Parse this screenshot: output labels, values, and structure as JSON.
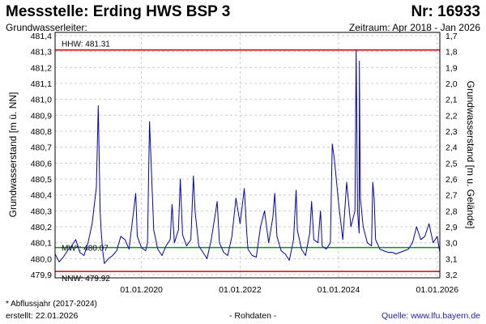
{
  "header": {
    "title": "Messstelle: Erding HWS BSP 3",
    "number": "Nr: 16933",
    "aquifer": "Grundwasserleiter:",
    "period": "Zeitraum: Apr 2018 - Jan 2026"
  },
  "footer": {
    "footnote": "* Abflussjahr (2017-2024)",
    "created": "erstellt:  22.01.2026",
    "raw_data": "- Rohdaten -",
    "source": "Quelle: www.lfu.bayern.de"
  },
  "colors": {
    "series": "#0000cc",
    "reference_extremes": "#dd0000",
    "reference_mean": "#009900",
    "grid": "#cccccc",
    "source_link": "#1a1acc"
  },
  "chart_data": {
    "type": "line",
    "ylabel": "Grundwasserstand [m ü. NN]",
    "y2label": "Grundwasserstand [m u. Gelände]",
    "ylim": [
      479.88,
      481.42
    ],
    "y_ticks": [
      "479,9",
      "480,0",
      "480,1",
      "480,2",
      "480,3",
      "480,4",
      "480,5",
      "480,6",
      "480,7",
      "480,8",
      "480,9",
      "481,0",
      "481,1",
      "481,2",
      "481,3",
      "481,4"
    ],
    "y2_ticks": [
      "3,2",
      "3,1",
      "3,0",
      "2,9",
      "2,8",
      "2,7",
      "2,6",
      "2,5",
      "2,4",
      "2,3",
      "2,2",
      "2,1",
      "2,0",
      "1,9",
      "1,8",
      "1,7"
    ],
    "y2_values": [
      3.2,
      3.1,
      3.0,
      2.9,
      2.8,
      2.7,
      2.6,
      2.5,
      2.4,
      2.3,
      2.2,
      2.1,
      2.0,
      1.9,
      1.8,
      1.7
    ],
    "y2_offset": 483.1,
    "xlim": [
      "2018-04-01",
      "2026-01-20"
    ],
    "x_ticks": [
      {
        "date": "2020-01-01",
        "label": "01.01.2020"
      },
      {
        "date": "2022-01-01",
        "label": "01.01.2022"
      },
      {
        "date": "2024-01-01",
        "label": "01.01.2024"
      },
      {
        "date": "2026-01-01",
        "label": "01.01.2026"
      }
    ],
    "grid": true,
    "reference_lines": [
      {
        "name": "HHW",
        "label": "HHW: 481.31",
        "value": 481.31,
        "kind": "extreme"
      },
      {
        "name": "MW",
        "label": "MW*: 480.07",
        "value": 480.07,
        "kind": "mean"
      },
      {
        "name": "NNW",
        "label": "NNW: 479.92",
        "value": 479.92,
        "kind": "extreme"
      }
    ],
    "series": [
      {
        "x": [
          "2018-04-01",
          "2018-05-01",
          "2018-06-01",
          "2018-07-01",
          "2018-08-01",
          "2018-09-01",
          "2018-10-01",
          "2018-11-01",
          "2018-12-01",
          "2019-01-01",
          "2019-02-01",
          "2019-02-15",
          "2019-03-01",
          "2019-03-10",
          "2019-03-20",
          "2019-04-01",
          "2019-05-01",
          "2019-06-01",
          "2019-07-01",
          "2019-08-01",
          "2019-09-01",
          "2019-10-01",
          "2019-11-01",
          "2019-11-20",
          "2019-12-01",
          "2020-01-01",
          "2020-02-01",
          "2020-02-15",
          "2020-03-01",
          "2020-04-01",
          "2020-05-01",
          "2020-06-01",
          "2020-07-01",
          "2020-08-01",
          "2020-08-15",
          "2020-09-01",
          "2020-10-01",
          "2020-10-15",
          "2020-11-01",
          "2020-12-01",
          "2021-01-01",
          "2021-01-20",
          "2021-02-01",
          "2021-03-01",
          "2021-04-01",
          "2021-05-01",
          "2021-06-01",
          "2021-07-01",
          "2021-07-15",
          "2021-08-01",
          "2021-09-01",
          "2021-10-01",
          "2021-11-01",
          "2021-12-01",
          "2022-01-01",
          "2022-02-01",
          "2022-02-20",
          "2022-03-01",
          "2022-04-01",
          "2022-05-01",
          "2022-06-01",
          "2022-07-01",
          "2022-08-01",
          "2022-09-01",
          "2022-09-15",
          "2022-10-01",
          "2022-11-01",
          "2022-12-01",
          "2023-01-01",
          "2023-02-01",
          "2023-02-20",
          "2023-03-01",
          "2023-04-01",
          "2023-05-01",
          "2023-06-01",
          "2023-06-15",
          "2023-07-01",
          "2023-08-01",
          "2023-08-20",
          "2023-09-01",
          "2023-10-01",
          "2023-11-01",
          "2023-11-15",
          "2023-12-01",
          "2024-01-01",
          "2024-02-01",
          "2024-03-01",
          "2024-04-01",
          "2024-05-01",
          "2024-05-10",
          "2024-05-20",
          "2024-06-01",
          "2024-06-03",
          "2024-06-10",
          "2024-07-01",
          "2024-08-01",
          "2024-09-01",
          "2024-09-10",
          "2024-09-20",
          "2024-10-01",
          "2024-11-01",
          "2024-12-01",
          "2025-01-01",
          "2025-02-01",
          "2025-03-01",
          "2025-04-01",
          "2025-05-01",
          "2025-06-01",
          "2025-07-01",
          "2025-08-01",
          "2025-09-01",
          "2025-10-01",
          "2025-11-01",
          "2025-12-01",
          "2026-01-01",
          "2026-01-20"
        ],
        "y": [
          480.03,
          479.98,
          480.01,
          480.05,
          480.08,
          480.12,
          480.04,
          480.02,
          480.1,
          480.22,
          480.45,
          480.96,
          480.3,
          480.16,
          480.05,
          479.97,
          480.0,
          480.02,
          480.05,
          480.14,
          480.12,
          480.06,
          480.28,
          480.41,
          480.14,
          480.07,
          480.05,
          480.1,
          480.86,
          480.18,
          480.06,
          480.02,
          480.08,
          480.12,
          480.34,
          480.1,
          480.18,
          480.5,
          480.15,
          480.08,
          480.12,
          480.52,
          480.3,
          480.08,
          480.04,
          480.0,
          480.12,
          480.28,
          480.36,
          480.1,
          480.04,
          480.02,
          480.14,
          480.38,
          480.22,
          480.44,
          480.15,
          480.06,
          480.02,
          480.01,
          480.2,
          480.3,
          480.1,
          480.26,
          480.41,
          480.14,
          480.05,
          480.03,
          479.99,
          480.12,
          480.43,
          480.18,
          480.06,
          480.02,
          480.16,
          480.36,
          480.12,
          480.1,
          480.3,
          480.08,
          480.06,
          480.1,
          480.72,
          480.62,
          480.35,
          480.12,
          480.48,
          480.2,
          480.3,
          481.31,
          480.3,
          480.16,
          481.24,
          480.38,
          480.2,
          480.1,
          480.08,
          480.48,
          480.38,
          480.12,
          480.06,
          480.05,
          480.04,
          480.04,
          480.03,
          480.04,
          480.05,
          480.06,
          480.1,
          480.2,
          480.12,
          480.14,
          480.22,
          480.1,
          480.14,
          480.04
        ]
      }
    ]
  }
}
